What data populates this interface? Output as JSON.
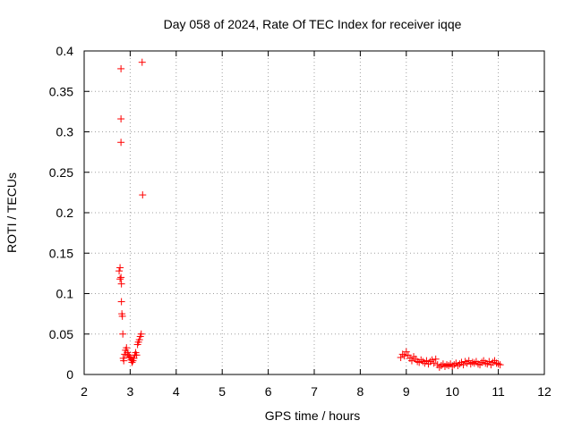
{
  "chart_data": {
    "type": "scatter",
    "title": "Day 058 of 2024, Rate Of TEC Index for receiver iqqe",
    "xlabel": "GPS time / hours",
    "ylabel": "ROTI / TECUs",
    "xlim": [
      2,
      12
    ],
    "ylim": [
      0,
      0.4
    ],
    "grid": true,
    "marker": "+",
    "marker_color": "#ff0000",
    "x_ticks": [
      "2",
      "3",
      "4",
      "5",
      "6",
      "7",
      "8",
      "9",
      "10",
      "11",
      "12"
    ],
    "y_ticks": [
      "0",
      "0.05",
      "0.1",
      "0.15",
      "0.2",
      "0.25",
      "0.3",
      "0.35",
      "0.4"
    ],
    "series": [
      {
        "points": [
          [
            2.76,
            0.128
          ],
          [
            2.78,
            0.132
          ],
          [
            2.78,
            0.118
          ],
          [
            2.8,
            0.378
          ],
          [
            2.8,
            0.316
          ],
          [
            2.8,
            0.287
          ],
          [
            2.8,
            0.12
          ],
          [
            2.81,
            0.112
          ],
          [
            2.81,
            0.09
          ],
          [
            2.82,
            0.075
          ],
          [
            2.83,
            0.072
          ],
          [
            2.84,
            0.05
          ],
          [
            2.85,
            0.02
          ],
          [
            2.86,
            0.017
          ],
          [
            2.88,
            0.025
          ],
          [
            2.9,
            0.03
          ],
          [
            2.92,
            0.033
          ],
          [
            2.94,
            0.027
          ],
          [
            2.96,
            0.024
          ],
          [
            2.98,
            0.022
          ],
          [
            3.0,
            0.021
          ],
          [
            3.02,
            0.018
          ],
          [
            3.04,
            0.015
          ],
          [
            3.06,
            0.017
          ],
          [
            3.08,
            0.02
          ],
          [
            3.1,
            0.024
          ],
          [
            3.12,
            0.027
          ],
          [
            3.14,
            0.024
          ],
          [
            3.16,
            0.037
          ],
          [
            3.18,
            0.04
          ],
          [
            3.2,
            0.043
          ],
          [
            3.22,
            0.047
          ],
          [
            3.24,
            0.05
          ],
          [
            3.26,
            0.386
          ],
          [
            3.27,
            0.222
          ],
          [
            8.88,
            0.021
          ],
          [
            8.92,
            0.025
          ],
          [
            8.96,
            0.023
          ],
          [
            9.0,
            0.028
          ],
          [
            9.04,
            0.024
          ],
          [
            9.08,
            0.02
          ],
          [
            9.12,
            0.017
          ],
          [
            9.16,
            0.022
          ],
          [
            9.2,
            0.019
          ],
          [
            9.24,
            0.016
          ],
          [
            9.28,
            0.015
          ],
          [
            9.32,
            0.018
          ],
          [
            9.36,
            0.016
          ],
          [
            9.4,
            0.014
          ],
          [
            9.44,
            0.017
          ],
          [
            9.48,
            0.013
          ],
          [
            9.52,
            0.016
          ],
          [
            9.56,
            0.018
          ],
          [
            9.6,
            0.014
          ],
          [
            9.64,
            0.019
          ],
          [
            9.68,
            0.012
          ],
          [
            9.72,
            0.009
          ],
          [
            9.76,
            0.011
          ],
          [
            9.8,
            0.013
          ],
          [
            9.84,
            0.01
          ],
          [
            9.88,
            0.012
          ],
          [
            9.92,
            0.011
          ],
          [
            9.96,
            0.013
          ],
          [
            10.0,
            0.01
          ],
          [
            10.04,
            0.012
          ],
          [
            10.08,
            0.014
          ],
          [
            10.12,
            0.011
          ],
          [
            10.16,
            0.013
          ],
          [
            10.2,
            0.015
          ],
          [
            10.24,
            0.012
          ],
          [
            10.28,
            0.016
          ],
          [
            10.32,
            0.014
          ],
          [
            10.36,
            0.017
          ],
          [
            10.4,
            0.013
          ],
          [
            10.44,
            0.015
          ],
          [
            10.48,
            0.014
          ],
          [
            10.52,
            0.016
          ],
          [
            10.56,
            0.013
          ],
          [
            10.6,
            0.012
          ],
          [
            10.64,
            0.015
          ],
          [
            10.68,
            0.017
          ],
          [
            10.72,
            0.014
          ],
          [
            10.76,
            0.013
          ],
          [
            10.8,
            0.016
          ],
          [
            10.84,
            0.012
          ],
          [
            10.88,
            0.015
          ],
          [
            10.92,
            0.017
          ],
          [
            10.96,
            0.014
          ],
          [
            11.0,
            0.013
          ],
          [
            11.04,
            0.012
          ]
        ]
      }
    ]
  }
}
